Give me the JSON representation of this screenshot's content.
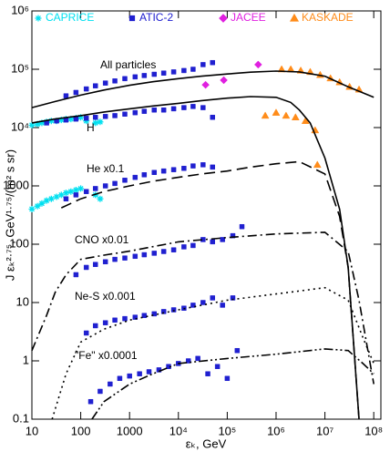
{
  "chart_data": {
    "type": "scatter",
    "log_x": true,
    "log_y": true,
    "xlabel": "εₖ, GeV",
    "ylabel": "J εₖ²·⁷⁵, GeV¹·⁷⁵/(m² s sr)",
    "xlim": [
      10,
      140000000
    ],
    "ylim": [
      0.1,
      1000000
    ],
    "xticks": [
      {
        "value": 10,
        "label": "10"
      },
      {
        "value": 100,
        "label": "100"
      },
      {
        "value": 1000,
        "label": "1000"
      },
      {
        "value": 10000,
        "label": "10⁴"
      },
      {
        "value": 100000,
        "label": "10⁵"
      },
      {
        "value": 1000000,
        "label": "10⁶"
      },
      {
        "value": 10000000,
        "label": "10⁷"
      },
      {
        "value": 100000000,
        "label": "10⁸"
      }
    ],
    "yticks": [
      0.1,
      1,
      10,
      100,
      1000,
      {
        "value": 10000,
        "label": "10⁴"
      },
      {
        "value": 100000,
        "label": "10⁵"
      },
      {
        "value": 1000000,
        "label": "10⁶"
      }
    ],
    "series": [
      {
        "name": "CAPRICE",
        "color": "#00e0f0",
        "marker": "star",
        "x": [
          10,
          13,
          16,
          20,
          25,
          32,
          40,
          50,
          63,
          80,
          100,
          200,
          250,
          10,
          13,
          16,
          20,
          25,
          32,
          40,
          50,
          63,
          80,
          100,
          130,
          200,
          250
        ],
        "values": [
          400,
          450,
          500,
          560,
          600,
          650,
          700,
          760,
          800,
          850,
          900,
          700,
          600,
          11000,
          11500,
          12000,
          12500,
          13000,
          13000,
          13500,
          14000,
          14000,
          14500,
          15000,
          13000,
          12000,
          12500
        ]
      },
      {
        "name": "ATIC-2",
        "color": "#2020d0",
        "marker": "square",
        "x": [
          50,
          80,
          130,
          200,
          320,
          500,
          800,
          1300,
          2000,
          3200,
          5000,
          8000,
          13000,
          20000,
          32000,
          50000,
          20,
          32,
          50,
          80,
          130,
          200,
          320,
          500,
          800,
          1300,
          2000,
          3200,
          5000,
          8000,
          13000,
          20000,
          32000,
          50000,
          50,
          80,
          130,
          200,
          320,
          500,
          800,
          1300,
          2000,
          3200,
          5000,
          8000,
          13000,
          20000,
          32000,
          50000,
          80,
          130,
          200,
          320,
          500,
          800,
          1300,
          2000,
          3200,
          5000,
          8000,
          13000,
          20000,
          32000,
          50000,
          80000,
          130000,
          200000,
          130,
          200,
          320,
          500,
          800,
          1300,
          2000,
          3200,
          5000,
          8000,
          13000,
          20000,
          32000,
          50000,
          80000,
          130000,
          160,
          250,
          400,
          630,
          1000,
          1600,
          2500,
          4000,
          6300,
          10000,
          16000,
          25000,
          40000,
          63000,
          100000,
          160000
        ],
        "values": [
          35000,
          40000,
          46000,
          52000,
          58000,
          63000,
          69000,
          74000,
          78000,
          82000,
          86000,
          90000,
          95000,
          100000,
          120000,
          130000,
          12000,
          13000,
          13500,
          14000,
          14500,
          15000,
          15500,
          16000,
          17000,
          18000,
          19000,
          20000,
          20000,
          21000,
          22000,
          23000,
          22000,
          15000,
          600,
          700,
          800,
          900,
          1000,
          1100,
          1250,
          1400,
          1550,
          1700,
          1800,
          1900,
          2000,
          2200,
          2300,
          2100,
          30,
          40,
          45,
          50,
          55,
          58,
          62,
          66,
          70,
          75,
          80,
          90,
          95,
          120,
          110,
          120,
          140,
          200,
          3,
          4,
          4.5,
          5,
          5.3,
          5.6,
          6,
          6.4,
          7,
          7.5,
          8,
          9,
          10,
          12,
          9,
          12,
          0.2,
          0.3,
          0.4,
          0.5,
          0.55,
          0.6,
          0.65,
          0.7,
          0.8,
          0.9,
          1,
          1.1,
          0.6,
          0.8,
          0.5,
          1.5
        ]
      },
      {
        "name": "JACEE",
        "color": "#e020e0",
        "marker": "diamond",
        "x": [
          36000,
          85000,
          430000
        ],
        "values": [
          54000,
          65000,
          120000
        ]
      },
      {
        "name": "KASKADE",
        "color": "#ff8c1a",
        "marker": "triangle",
        "x": [
          1300000,
          2000000,
          3200000,
          5000000,
          8000000,
          13000000,
          20000000,
          32000000,
          50000000,
          600000,
          1000000,
          1600000,
          2500000,
          4000000,
          6300000,
          7000000
        ],
        "values": [
          100000,
          100000,
          95000,
          90000,
          80000,
          70000,
          60000,
          50000,
          45000,
          16000,
          18000,
          16000,
          15000,
          13000,
          9000,
          2300
        ]
      },
      {
        "name": "All particles",
        "kind": "line",
        "color": "#000",
        "dash": "solid",
        "x": [
          10,
          30,
          100,
          300,
          1000,
          3000,
          10000,
          30000,
          100000,
          300000,
          1000000,
          3000000,
          10000000,
          30000000,
          100000000
        ],
        "values": [
          22000,
          28000,
          36000,
          44000,
          53000,
          61000,
          69000,
          76000,
          83000,
          89000,
          93000,
          90000,
          76000,
          50000,
          33000
        ]
      },
      {
        "name": "H",
        "kind": "line",
        "color": "#000",
        "dash": "solid",
        "x": [
          10,
          30,
          100,
          300,
          1000,
          3000,
          10000,
          30000,
          100000,
          300000,
          1000000,
          2000000,
          3000000,
          5000000,
          10000000,
          20000000,
          30000000,
          50000000
        ],
        "values": [
          12000,
          14000,
          16000,
          18500,
          21000,
          23500,
          26000,
          29000,
          32000,
          34000,
          33000,
          27000,
          20000,
          12000,
          3000,
          400,
          40,
          0.1
        ]
      },
      {
        "name": "He x0.1",
        "kind": "line",
        "color": "#000",
        "dash": "dashed",
        "x": [
          40,
          100,
          300,
          1000,
          3000,
          10000,
          30000,
          100000,
          300000,
          1000000,
          3000000,
          10000000,
          20000000,
          30000000,
          50000000
        ],
        "values": [
          420,
          600,
          800,
          1000,
          1200,
          1400,
          1600,
          1800,
          2100,
          2400,
          2600,
          1600,
          300,
          40,
          0.1
        ]
      },
      {
        "name": "CNO x0.01",
        "kind": "line",
        "color": "#000",
        "dash": "dashdot",
        "x": [
          10,
          20,
          30,
          50,
          100,
          300,
          1000,
          10000,
          100000,
          1000000,
          10000000,
          30000000,
          50000000,
          100000000
        ],
        "values": [
          1.5,
          6,
          15,
          30,
          55,
          65,
          76,
          110,
          130,
          150,
          160,
          75,
          11,
          0.4
        ]
      },
      {
        "name": "Ne-S x0.001",
        "kind": "line",
        "color": "#000",
        "dash": "dotted",
        "x": [
          26,
          50,
          100,
          300,
          1000,
          10000,
          100000,
          1000000,
          10000000,
          30000000,
          60000000,
          100000000
        ],
        "values": [
          0.1,
          0.6,
          2.1,
          3.5,
          5,
          7.5,
          11,
          14,
          18,
          11,
          2.5,
          0.9
        ]
      },
      {
        "name": "\"Fe\" x0.0001",
        "kind": "line",
        "color": "#000",
        "dash": "dashdotdot",
        "x": [
          170,
          300,
          1000,
          3000,
          10000,
          100000,
          1000000,
          10000000,
          30000000,
          60000000,
          100000000
        ],
        "values": [
          0.1,
          0.2,
          0.4,
          0.6,
          0.9,
          1.1,
          1.3,
          1.6,
          1.5,
          0.9,
          0.6
        ]
      }
    ]
  }
}
